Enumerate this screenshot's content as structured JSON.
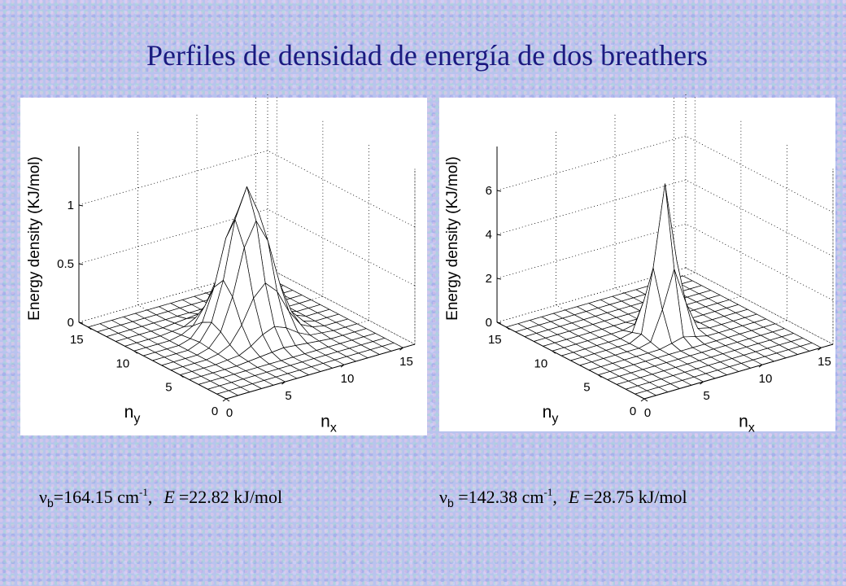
{
  "title": "Perfiles de densidad de energía de dos breathers",
  "chart_data": [
    {
      "type": "surface",
      "zlabel": "Energy density (KJ/mol)",
      "xlabel": [
        "n",
        "x"
      ],
      "ylabel": [
        "n",
        "y"
      ],
      "x": [
        0,
        1,
        2,
        3,
        4,
        5,
        6,
        7,
        8,
        9,
        10,
        11,
        12,
        13,
        14,
        15
      ],
      "y": [
        0,
        1,
        2,
        3,
        4,
        5,
        6,
        7,
        8,
        9,
        10,
        11,
        12,
        13,
        14,
        15
      ],
      "xlim": [
        0,
        16
      ],
      "ylim": [
        0,
        16
      ],
      "zlim": [
        0,
        1.5
      ],
      "xticks": [
        0,
        5,
        10,
        15
      ],
      "yticks": [
        0,
        5,
        10,
        15
      ],
      "zticks": [
        0,
        0.5,
        1
      ],
      "color": "#ffffff",
      "grid": true,
      "z": [
        [
          0,
          0,
          0,
          0,
          0,
          0,
          0,
          0,
          0,
          0,
          0,
          0,
          0,
          0,
          0,
          0
        ],
        [
          0,
          0,
          0,
          0,
          0,
          0,
          0,
          0,
          0,
          0,
          0,
          0,
          0,
          0,
          0,
          0
        ],
        [
          0,
          0,
          0,
          0,
          0,
          0,
          0,
          0,
          0,
          0,
          0,
          0,
          0,
          0,
          0,
          0
        ],
        [
          0,
          0,
          0,
          0,
          0,
          0,
          0,
          0,
          0,
          0,
          0,
          0,
          0,
          0,
          0,
          0
        ],
        [
          0,
          0,
          0,
          0,
          0,
          0.01,
          0.02,
          0.03,
          0.04,
          0.03,
          0.02,
          0.01,
          0,
          0,
          0,
          0
        ],
        [
          0,
          0,
          0,
          0,
          0.01,
          0.02,
          0.07,
          0.14,
          0.18,
          0.14,
          0.07,
          0.02,
          0.01,
          0,
          0,
          0
        ],
        [
          0,
          0,
          0,
          0,
          0.02,
          0.07,
          0.21,
          0.41,
          0.51,
          0.41,
          0.21,
          0.07,
          0.02,
          0,
          0,
          0
        ],
        [
          0,
          0,
          0,
          0,
          0.03,
          0.14,
          0.41,
          0.8,
          1.0,
          0.8,
          0.41,
          0.14,
          0.03,
          0,
          0,
          0
        ],
        [
          0,
          0,
          0,
          0,
          0.04,
          0.18,
          0.51,
          1.0,
          1.25,
          1.0,
          0.51,
          0.18,
          0.04,
          0,
          0,
          0
        ],
        [
          0,
          0,
          0,
          0,
          0.03,
          0.14,
          0.41,
          0.8,
          1.0,
          0.8,
          0.41,
          0.14,
          0.03,
          0,
          0,
          0
        ],
        [
          0,
          0,
          0,
          0,
          0.02,
          0.07,
          0.21,
          0.41,
          0.51,
          0.41,
          0.21,
          0.07,
          0.02,
          0,
          0,
          0
        ],
        [
          0,
          0,
          0,
          0,
          0.01,
          0.02,
          0.07,
          0.14,
          0.18,
          0.14,
          0.07,
          0.02,
          0.01,
          0,
          0,
          0
        ],
        [
          0,
          0,
          0,
          0,
          0,
          0.01,
          0.02,
          0.03,
          0.04,
          0.03,
          0.02,
          0.01,
          0,
          0,
          0,
          0
        ],
        [
          0,
          0,
          0,
          0,
          0,
          0,
          0,
          0,
          0,
          0,
          0,
          0,
          0,
          0,
          0,
          0
        ],
        [
          0,
          0,
          0,
          0,
          0,
          0,
          0,
          0,
          0,
          0,
          0,
          0,
          0,
          0,
          0,
          0
        ],
        [
          0,
          0,
          0,
          0,
          0,
          0,
          0,
          0,
          0,
          0,
          0,
          0,
          0,
          0,
          0,
          0
        ]
      ]
    },
    {
      "type": "surface",
      "zlabel": "Energy density (KJ/mol)",
      "xlabel": [
        "n",
        "x"
      ],
      "ylabel": [
        "n",
        "y"
      ],
      "x": [
        0,
        1,
        2,
        3,
        4,
        5,
        6,
        7,
        8,
        9,
        10,
        11,
        12,
        13,
        14,
        15
      ],
      "y": [
        0,
        1,
        2,
        3,
        4,
        5,
        6,
        7,
        8,
        9,
        10,
        11,
        12,
        13,
        14,
        15
      ],
      "xlim": [
        0,
        16
      ],
      "ylim": [
        0,
        16
      ],
      "zlim": [
        0,
        8
      ],
      "xticks": [
        0,
        5,
        10,
        15
      ],
      "yticks": [
        0,
        5,
        10,
        15
      ],
      "zticks": [
        0,
        2,
        4,
        6
      ],
      "color": "#ffffff",
      "grid": true,
      "z": [
        [
          0,
          0,
          0,
          0,
          0,
          0,
          0,
          0,
          0,
          0,
          0,
          0,
          0,
          0,
          0,
          0
        ],
        [
          0,
          0,
          0,
          0,
          0,
          0,
          0,
          0,
          0,
          0,
          0,
          0,
          0,
          0,
          0,
          0
        ],
        [
          0,
          0,
          0,
          0,
          0,
          0,
          0,
          0,
          0,
          0,
          0,
          0,
          0,
          0,
          0,
          0
        ],
        [
          0,
          0,
          0,
          0,
          0,
          0,
          0,
          0,
          0,
          0,
          0,
          0,
          0,
          0,
          0,
          0
        ],
        [
          0,
          0,
          0,
          0,
          0,
          0,
          0,
          0,
          0,
          0,
          0,
          0,
          0,
          0,
          0,
          0
        ],
        [
          0,
          0,
          0,
          0,
          0,
          0,
          0,
          0,
          0,
          0,
          0,
          0,
          0,
          0,
          0,
          0
        ],
        [
          0,
          0,
          0,
          0,
          0,
          0,
          0.01,
          0.13,
          0.27,
          0.13,
          0.01,
          0,
          0,
          0,
          0,
          0
        ],
        [
          0,
          0,
          0,
          0,
          0,
          0,
          0.13,
          1.44,
          3.13,
          1.44,
          0.13,
          0,
          0,
          0,
          0,
          0
        ],
        [
          0,
          0,
          0,
          0,
          0,
          0,
          0.27,
          3.13,
          6.8,
          3.13,
          0.27,
          0,
          0,
          0,
          0,
          0
        ],
        [
          0,
          0,
          0,
          0,
          0,
          0,
          0.13,
          1.44,
          3.13,
          1.44,
          0.13,
          0,
          0,
          0,
          0,
          0
        ],
        [
          0,
          0,
          0,
          0,
          0,
          0,
          0.01,
          0.13,
          0.27,
          0.13,
          0.01,
          0,
          0,
          0,
          0,
          0
        ],
        [
          0,
          0,
          0,
          0,
          0,
          0,
          0,
          0,
          0,
          0,
          0,
          0,
          0,
          0,
          0,
          0
        ],
        [
          0,
          0,
          0,
          0,
          0,
          0,
          0,
          0,
          0,
          0,
          0,
          0,
          0,
          0,
          0,
          0
        ],
        [
          0,
          0,
          0,
          0,
          0,
          0,
          0,
          0,
          0,
          0,
          0,
          0,
          0,
          0,
          0,
          0
        ],
        [
          0,
          0,
          0,
          0,
          0,
          0,
          0,
          0,
          0,
          0,
          0,
          0,
          0,
          0,
          0,
          0
        ],
        [
          0,
          0,
          0,
          0,
          0,
          0,
          0,
          0,
          0,
          0,
          0,
          0,
          0,
          0,
          0,
          0
        ]
      ]
    }
  ],
  "captions": [
    {
      "symbol": "ν",
      "sub": "b",
      "text": "=164.15 cm",
      "sup": "-1",
      "sep": ",",
      "var": "E",
      "rest": "=22.82 kJ/mol"
    },
    {
      "symbol": "ν",
      "sub": "b",
      "text": " =142.38 cm",
      "sup": "-1",
      "sep": ",",
      "var": "E",
      "rest": "=28.75 kJ/mol"
    }
  ]
}
